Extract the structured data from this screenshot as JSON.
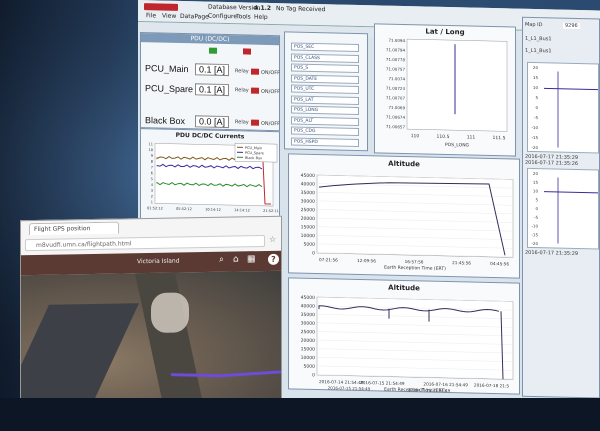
{
  "app": {
    "menus": [
      "File",
      "View",
      "DataPage",
      "Configure",
      "Tools",
      "Help"
    ],
    "db_version_label": "Database Version",
    "db_version": "4.1.2",
    "tag": "No Tag Received"
  },
  "power": {
    "pdu_label": "PDU (DC/DC)",
    "pcu_main_label": "PCU_Main",
    "pcu_main_value": "0.1 [A]",
    "pcu_spare_label": "PCU_Spare",
    "pcu_spare_value": "0.1 [A]",
    "black_box_label": "Black Box",
    "black_box_value": "0.0 [A]",
    "relay_label": "Relay",
    "off_label": "OFF",
    "onoff_label": "ON/OFF"
  },
  "pdu_chart_title": "PDU DC/DC Currents",
  "legend": [
    "PCU_Main",
    "PCU_Spare",
    "Black Box"
  ],
  "gps_fields": [
    "POS_SEC",
    "POS_CLASS",
    "POS_S",
    "POS_DATE",
    "POS_UTC",
    "POS_LAT",
    "POS_LONG",
    "POS_ALT",
    "POS_CDG",
    "POS_HSPD"
  ],
  "latlong": {
    "title": "Lat / Long",
    "xlabel": "POS_LONG",
    "xticks": [
      "110",
      "110.5",
      "111",
      "111.5"
    ],
    "yticks": [
      "71.0094",
      "71.00794",
      "71.00778",
      "71.00757",
      "71.0074",
      "71.00723",
      "71.00707",
      "71.0069",
      "71.00674",
      "71.00657"
    ]
  },
  "altitude1": {
    "title": "Altitude",
    "xlabel": "Earth Reception Time (ERT)",
    "yticks": [
      "45000",
      "40000",
      "35000",
      "30000",
      "25000",
      "20000",
      "15000",
      "10000",
      "5000",
      "0"
    ],
    "xticks": [
      "07:21:56",
      "12:09:56",
      "16:57:56",
      "21:45:56",
      "04:45:56"
    ]
  },
  "altitude2": {
    "title": "Altitude",
    "xlabel": "Earth Reception Time (ERT)",
    "yticks": [
      "45000",
      "40000",
      "35000",
      "30000",
      "25000",
      "20000",
      "15000",
      "10000",
      "5000",
      "0"
    ],
    "xticks": [
      "2016-07-14 21:54:49",
      "2016-07-15 21:54:49",
      "2016-07-16 21:54:49",
      "2016-07-18 21:5"
    ],
    "xticks2": [
      "2016-07-15 21:54:49",
      "2016-07-16 21:54:49"
    ]
  },
  "right_panel": {
    "map_id_label": "Map ID",
    "map_id": "9296",
    "rows": [
      "1_L1_Bus1",
      "1_L1_Bus1"
    ],
    "dates": [
      "2016-07-17 21:35:29",
      "2016-07-17 21:35:26",
      "2016-07-17 21:35:29"
    ],
    "yticks_a": [
      "20",
      "15",
      "10",
      "5",
      "0",
      "-5",
      "-10",
      "-15",
      "-20"
    ],
    "yticks_b": [
      "20",
      "15",
      "10",
      "5",
      "0",
      "-5",
      "-10",
      "-15",
      "-20"
    ]
  },
  "pdu_xticks": [
    "01:52:12",
    "05:52:12",
    "10:14:12",
    "14:14:12",
    "21:52:11"
  ],
  "pdu_yticks": [
    "11",
    "10",
    "9",
    "8",
    "7",
    "6",
    "5",
    "4",
    "3",
    "2",
    "1"
  ],
  "browser": {
    "tab_title": "Flight GPS position",
    "url": "m8vudfi.umn.ca/flightpath.html",
    "map_label": "Victoria Island"
  }
}
